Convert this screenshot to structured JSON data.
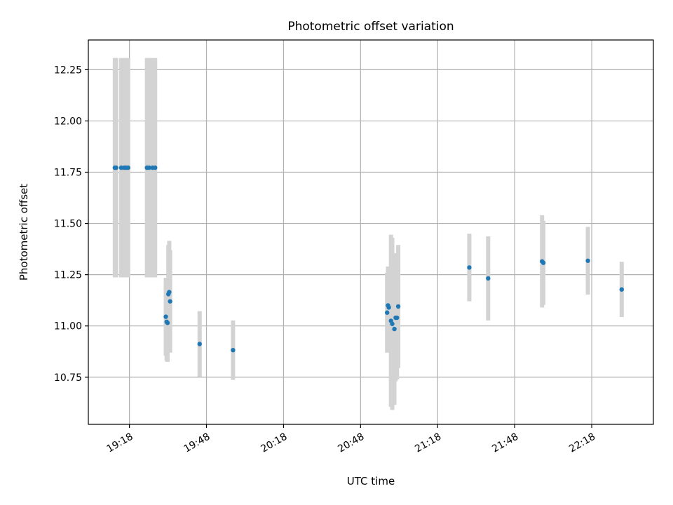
{
  "chart_data": {
    "type": "scatter",
    "title": "Photometric offset variation",
    "xlabel": "UTC time",
    "ylabel": "Photometric offset",
    "grid": true,
    "x_unit": "UTC time (HH:MM)",
    "xlim": [
      "19:02",
      "22:42"
    ],
    "ylim": [
      10.52,
      12.395
    ],
    "x_ticks": [
      "19:18",
      "19:48",
      "20:18",
      "20:48",
      "21:18",
      "21:48",
      "22:18"
    ],
    "y_ticks": [
      10.75,
      11.0,
      11.25,
      11.5,
      11.75,
      12.0,
      12.25
    ],
    "y_tick_labels": [
      "10.75",
      "11.00",
      "11.25",
      "11.50",
      "11.75",
      "12.00",
      "12.25"
    ],
    "point_color": "#1f77b4",
    "errorbar_color": "#d3d3d3",
    "points": [
      {
        "t": "19:12:20",
        "y": 11.772,
        "err": 0.535
      },
      {
        "t": "19:12:50",
        "y": 11.772,
        "err": 0.535
      },
      {
        "t": "19:14:50",
        "y": 11.772,
        "err": 0.535
      },
      {
        "t": "19:16:00",
        "y": 11.772,
        "err": 0.535
      },
      {
        "t": "19:16:40",
        "y": 11.772,
        "err": 0.535
      },
      {
        "t": "19:17:30",
        "y": 11.772,
        "err": 0.535
      },
      {
        "t": "19:24:50",
        "y": 11.772,
        "err": 0.535
      },
      {
        "t": "19:25:40",
        "y": 11.772,
        "err": 0.535
      },
      {
        "t": "19:27:00",
        "y": 11.772,
        "err": 0.535
      },
      {
        "t": "19:28:00",
        "y": 11.772,
        "err": 0.535
      },
      {
        "t": "19:32:10",
        "y": 11.045,
        "err": 0.19
      },
      {
        "t": "19:32:30",
        "y": 11.02,
        "err": 0.19
      },
      {
        "t": "19:32:50",
        "y": 11.015,
        "err": 0.19
      },
      {
        "t": "19:33:10",
        "y": 11.155,
        "err": 0.24
      },
      {
        "t": "19:33:30",
        "y": 11.165,
        "err": 0.25
      },
      {
        "t": "19:33:50",
        "y": 11.12,
        "err": 0.25
      },
      {
        "t": "19:45:20",
        "y": 10.912,
        "err": 0.16
      },
      {
        "t": "19:58:20",
        "y": 10.882,
        "err": 0.145
      },
      {
        "t": "20:58:20",
        "y": 11.065,
        "err": 0.195
      },
      {
        "t": "20:58:40",
        "y": 11.1,
        "err": 0.19
      },
      {
        "t": "20:59:00",
        "y": 11.09,
        "err": 0.2
      },
      {
        "t": "20:59:50",
        "y": 11.025,
        "err": 0.42
      },
      {
        "t": "21:00:20",
        "y": 11.01,
        "err": 0.42
      },
      {
        "t": "21:01:10",
        "y": 10.985,
        "err": 0.37
      },
      {
        "t": "21:01:40",
        "y": 11.04,
        "err": 0.31
      },
      {
        "t": "21:02:10",
        "y": 11.04,
        "err": 0.3
      },
      {
        "t": "21:02:40",
        "y": 11.095,
        "err": 0.3
      },
      {
        "t": "21:30:20",
        "y": 11.285,
        "err": 0.165
      },
      {
        "t": "21:37:40",
        "y": 11.232,
        "err": 0.205
      },
      {
        "t": "21:58:40",
        "y": 11.315,
        "err": 0.225
      },
      {
        "t": "21:59:10",
        "y": 11.308,
        "err": 0.205
      },
      {
        "t": "22:16:30",
        "y": 11.318,
        "err": 0.165
      },
      {
        "t": "22:29:40",
        "y": 11.178,
        "err": 0.135
      }
    ]
  }
}
